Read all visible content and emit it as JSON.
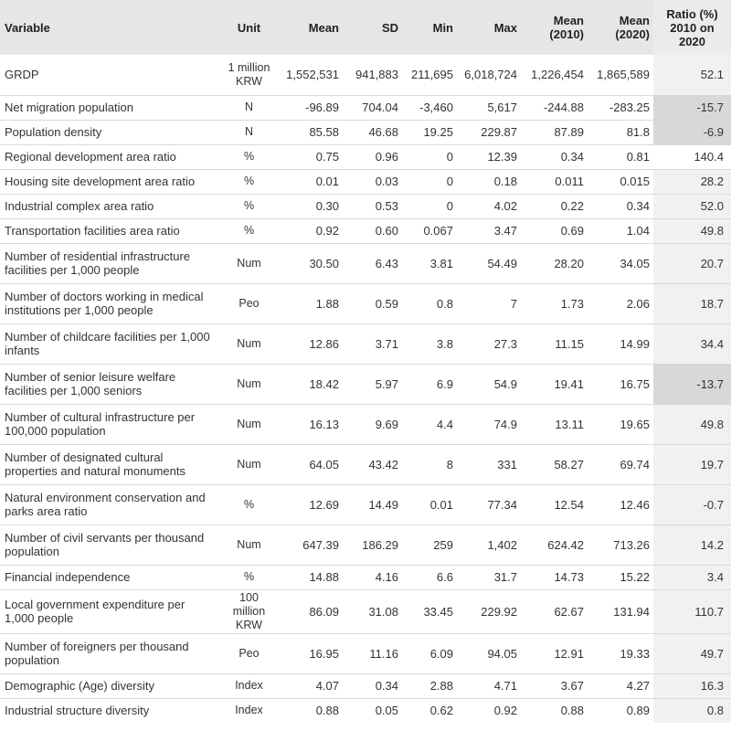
{
  "headers": {
    "variable": "Variable",
    "unit": "Unit",
    "mean": "Mean",
    "sd": "SD",
    "min": "Min",
    "max": "Max",
    "mean2010_1": "Mean",
    "mean2010_2": "(2010)",
    "mean2020_1": "Mean",
    "mean2020_2": "(2020)",
    "ratio_1": "Ratio (%)",
    "ratio_2": "2010 on",
    "ratio_3": "2020"
  },
  "rows": [
    {
      "variable": "GRDP",
      "unit": "1 million KRW",
      "mean": "1,552,531",
      "sd": "941,883",
      "min": "211,695",
      "max": "6,018,724",
      "mean2010": "1,226,454",
      "mean2020": "1,865,589",
      "ratio": "52.1"
    },
    {
      "variable": "Net migration population",
      "unit": "N",
      "mean": "-96.89",
      "sd": "704.04",
      "min": "-3,460",
      "max": "5,617",
      "mean2010": "-244.88",
      "mean2020": "-283.25",
      "ratio": "-15.7"
    },
    {
      "variable": "Population density",
      "unit": "N",
      "mean": "85.58",
      "sd": "46.68",
      "min": "19.25",
      "max": "229.87",
      "mean2010": "87.89",
      "mean2020": "81.8",
      "ratio": "-6.9"
    },
    {
      "variable": "Regional development area ratio",
      "unit": "%",
      "mean": "0.75",
      "sd": "0.96",
      "min": "0",
      "max": "12.39",
      "mean2010": "0.34",
      "mean2020": "0.81",
      "ratio": "140.4"
    },
    {
      "variable": "Housing site development area ratio",
      "unit": "%",
      "mean": "0.01",
      "sd": "0.03",
      "min": "0",
      "max": "0.18",
      "mean2010": "0.011",
      "mean2020": "0.015",
      "ratio": "28.2"
    },
    {
      "variable": "Industrial complex area ratio",
      "unit": "%",
      "mean": "0.30",
      "sd": "0.53",
      "min": "0",
      "max": "4.02",
      "mean2010": "0.22",
      "mean2020": "0.34",
      "ratio": "52.0"
    },
    {
      "variable": "Transportation facilities area ratio",
      "unit": "%",
      "mean": "0.92",
      "sd": "0.60",
      "min": "0.067",
      "max": "3.47",
      "mean2010": "0.69",
      "mean2020": "1.04",
      "ratio": "49.8"
    },
    {
      "variable": "Number of residential infrastructure facilities per 1,000 people",
      "unit": "Num",
      "mean": "30.50",
      "sd": "6.43",
      "min": "3.81",
      "max": "54.49",
      "mean2010": "28.20",
      "mean2020": "34.05",
      "ratio": "20.7"
    },
    {
      "variable": "Number of doctors working in medical institutions per 1,000 people",
      "unit": "Peo",
      "mean": "1.88",
      "sd": "0.59",
      "min": "0.8",
      "max": "7",
      "mean2010": "1.73",
      "mean2020": "2.06",
      "ratio": "18.7"
    },
    {
      "variable": "Number of childcare facilities per 1,000 infants",
      "unit": "Num",
      "mean": "12.86",
      "sd": "3.71",
      "min": "3.8",
      "max": "27.3",
      "mean2010": "11.15",
      "mean2020": "14.99",
      "ratio": "34.4"
    },
    {
      "variable": "Number of senior leisure welfare facilities per 1,000 seniors",
      "unit": "Num",
      "mean": "18.42",
      "sd": "5.97",
      "min": "6.9",
      "max": "54.9",
      "mean2010": "19.41",
      "mean2020": "16.75",
      "ratio": "-13.7"
    },
    {
      "variable": "Number of cultural infrastructure per 100,000 population",
      "unit": "Num",
      "mean": "16.13",
      "sd": "9.69",
      "min": "4.4",
      "max": "74.9",
      "mean2010": "13.11",
      "mean2020": "19.65",
      "ratio": "49.8"
    },
    {
      "variable": "Number of designated cultural properties and natural monuments",
      "unit": "Num",
      "mean": "64.05",
      "sd": "43.42",
      "min": "8",
      "max": "331",
      "mean2010": "58.27",
      "mean2020": "69.74",
      "ratio": "19.7"
    },
    {
      "variable": "Natural environment conservation and parks area ratio",
      "unit": "%",
      "mean": "12.69",
      "sd": "14.49",
      "min": "0.01",
      "max": "77.34",
      "mean2010": "12.54",
      "mean2020": "12.46",
      "ratio": "-0.7"
    },
    {
      "variable": "Number of civil servants per thousand population",
      "unit": "Num",
      "mean": "647.39",
      "sd": "186.29",
      "min": "259",
      "max": "1,402",
      "mean2010": "624.42",
      "mean2020": "713.26",
      "ratio": "14.2"
    },
    {
      "variable": "Financial independence",
      "unit": "%",
      "mean": "14.88",
      "sd": "4.16",
      "min": "6.6",
      "max": "31.7",
      "mean2010": "14.73",
      "mean2020": "15.22",
      "ratio": "3.4"
    },
    {
      "variable": "Local government expenditure per 1,000 people",
      "unit": "100 million KRW",
      "mean": "86.09",
      "sd": "31.08",
      "min": "33.45",
      "max": "229.92",
      "mean2010": "62.67",
      "mean2020": "131.94",
      "ratio": "110.7"
    },
    {
      "variable": "Number of foreigners per thousand population",
      "unit": "Peo",
      "mean": "16.95",
      "sd": "11.16",
      "min": "6.09",
      "max": "94.05",
      "mean2010": "12.91",
      "mean2020": "19.33",
      "ratio": "49.7"
    },
    {
      "variable": "Demographic (Age) diversity",
      "unit": "Index",
      "mean": "4.07",
      "sd": "0.34",
      "min": "2.88",
      "max": "4.71",
      "mean2010": "3.67",
      "mean2020": "4.27",
      "ratio": "16.3"
    },
    {
      "variable": "Industrial structure diversity",
      "unit": "Index",
      "mean": "0.88",
      "sd": "0.05",
      "min": "0.62",
      "max": "0.92",
      "mean2010": "0.88",
      "mean2020": "0.89",
      "ratio": "0.8"
    }
  ]
}
